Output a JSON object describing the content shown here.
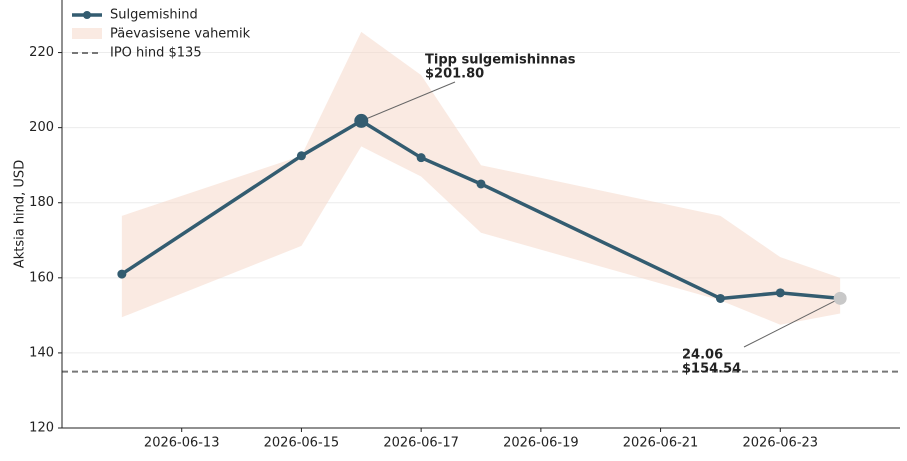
{
  "chart_data": {
    "type": "line",
    "x": [
      "2026-06-12",
      "2026-06-15",
      "2026-06-16",
      "2026-06-17",
      "2026-06-18",
      "2026-06-22",
      "2026-06-23",
      "2026-06-24"
    ],
    "series": [
      {
        "name": "Sulgemishind",
        "color": "#335c70",
        "values": [
          161,
          192.5,
          201.8,
          192,
          185,
          154.5,
          156,
          154.54
        ]
      }
    ],
    "band": {
      "name": "Päevasisene vahemik",
      "color": "#f6d5c6",
      "high": [
        176.5,
        192.5,
        225.5,
        214,
        190,
        176.5,
        165.5,
        160
      ],
      "low": [
        149.5,
        168.5,
        195,
        187,
        172,
        154,
        147.5,
        150.5
      ]
    },
    "reference_line": {
      "value": 135,
      "label": "IPO hind $135",
      "color": "#777777"
    },
    "annotations": [
      {
        "x": "2026-06-16",
        "y": 201.8,
        "text": [
          "Tipp sulgemishinnas",
          "$201.80"
        ]
      },
      {
        "x": "2026-06-24",
        "y": 154.54,
        "text": [
          "24.06",
          "$154.54"
        ]
      }
    ],
    "ylabel": "Aktsia hind, USD",
    "xlim": [
      "2026-06-11",
      "2026-06-25"
    ],
    "xticks": [
      "2026-06-13",
      "2026-06-15",
      "2026-06-17",
      "2026-06-19",
      "2026-06-21",
      "2026-06-23"
    ],
    "ylim": [
      120,
      234
    ],
    "yticks": [
      120,
      140,
      160,
      180,
      200,
      220
    ],
    "grid": true,
    "legend": "upper left"
  }
}
